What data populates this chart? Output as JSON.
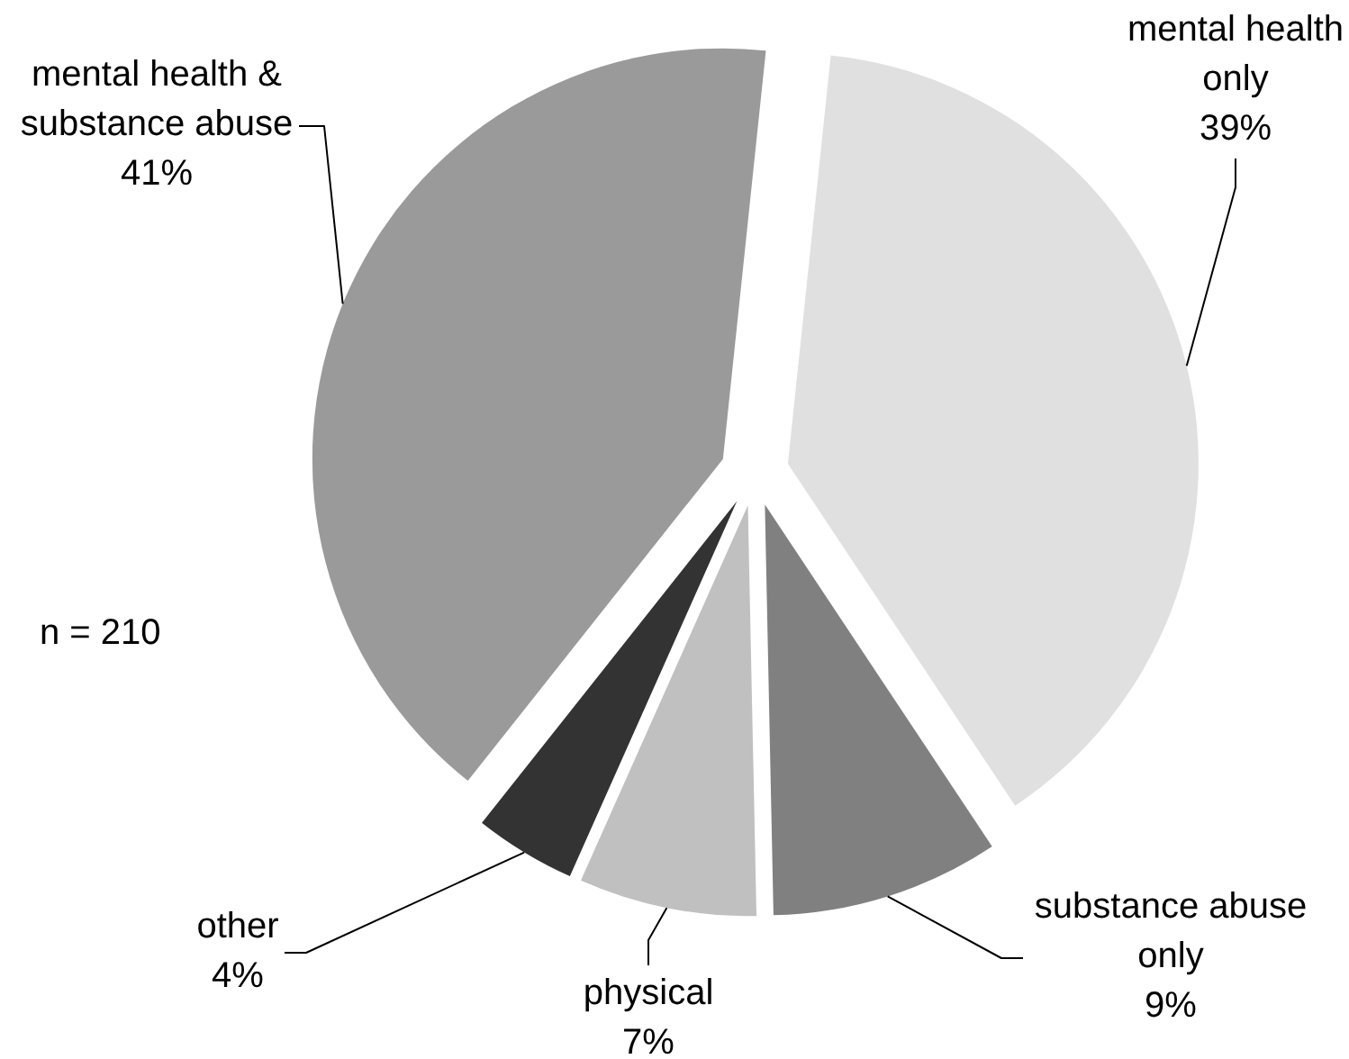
{
  "chart_data": {
    "type": "pie",
    "categories": [
      "mental health only",
      "substance abuse only",
      "physical",
      "other",
      "mental health & substance abuse"
    ],
    "values": [
      39,
      9,
      7,
      4,
      41
    ],
    "colors": [
      "#e0e0e0",
      "#808080",
      "#c0c0c0",
      "#333333",
      "#9a9a9a"
    ],
    "value_labels": [
      "39%",
      "9%",
      "7%",
      "4%",
      "41%"
    ],
    "legend": false,
    "annotations": [
      "n = 210"
    ]
  }
}
